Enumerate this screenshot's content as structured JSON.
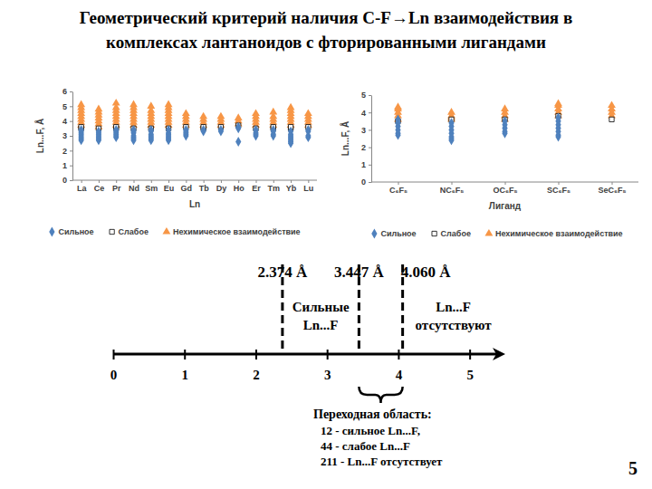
{
  "title": [
    "Геометрический критерий наличия C-F→Ln взаимодействия в",
    "комплексах лантаноидов с фторированными лигандами"
  ],
  "page_number": 5,
  "chart_data": [
    {
      "type": "scatter",
      "categories": [
        "La",
        "Ce",
        "Pr",
        "Nd",
        "Sm",
        "Eu",
        "Gd",
        "Tb",
        "Dy",
        "Ho",
        "Er",
        "Tm",
        "Yb",
        "Lu"
      ],
      "x_label": "Ln",
      "y_label": "Ln...F, Å",
      "ylim": [
        0,
        6
      ],
      "yticks": [
        0,
        1,
        2,
        3,
        4,
        5,
        6
      ],
      "grid": false,
      "legend": "bottom",
      "series": [
        {
          "name": "Сильное",
          "color": "#4f81bd",
          "marker": "diamond",
          "values": [
            [
              2.7,
              2.8,
              2.9,
              3.0,
              3.1,
              3.2,
              3.3,
              3.4
            ],
            [
              2.7,
              2.8,
              2.9,
              3.0,
              3.1,
              3.2,
              3.3
            ],
            [
              2.9,
              3.0,
              3.1,
              3.2,
              3.3,
              3.4
            ],
            [
              2.7,
              2.8,
              2.9,
              3.0,
              3.2,
              3.3,
              3.4
            ],
            [
              2.7,
              2.8,
              2.9,
              3.0,
              3.1,
              3.3,
              3.4
            ],
            [
              2.7,
              2.8,
              2.9,
              3.0,
              3.1,
              3.2,
              3.4
            ],
            [
              3.0,
              3.1,
              3.2,
              3.3,
              3.4
            ],
            [
              3.3,
              3.4
            ],
            [
              3.3,
              3.4
            ],
            [
              2.6,
              3.5,
              3.6
            ],
            [
              3.0,
              3.1,
              3.2,
              3.4
            ],
            [
              3.0,
              3.1,
              3.3,
              3.4
            ],
            [
              2.5,
              2.6,
              2.7,
              2.8,
              2.9,
              3.0,
              3.1,
              3.3
            ],
            [
              2.9,
              3.0,
              3.3,
              3.4
            ]
          ]
        },
        {
          "name": "Слабое",
          "color": "#ffffff",
          "marker": "square",
          "values": [
            [
              3.5,
              3.6
            ],
            [
              3.5
            ],
            [
              3.5,
              3.6
            ],
            [
              3.5
            ],
            [
              3.5
            ],
            [
              3.5
            ],
            [
              3.6
            ],
            [
              3.5,
              3.6
            ],
            [
              3.6
            ],
            [
              3.7
            ],
            [
              3.5
            ],
            [
              3.5,
              3.6
            ],
            [
              3.5,
              3.6
            ],
            [
              3.6
            ]
          ]
        },
        {
          "name": "Нехимическое взаимодействие",
          "color": "#f79646",
          "marker": "triangle",
          "values": [
            [
              3.7,
              3.9,
              4.1,
              4.3,
              4.5,
              4.7,
              4.9,
              5.1
            ],
            [
              3.6,
              3.8,
              4.0,
              4.2,
              4.4,
              4.6,
              4.8
            ],
            [
              3.7,
              3.9,
              4.1,
              4.3,
              4.5,
              4.7,
              4.9,
              5.2
            ],
            [
              3.7,
              3.9,
              4.1,
              4.3,
              4.5,
              4.7,
              4.9,
              5.1
            ],
            [
              3.7,
              3.9,
              4.1,
              4.3,
              4.5,
              4.7,
              5.0
            ],
            [
              3.7,
              3.9,
              4.1,
              4.3,
              4.5,
              4.7,
              4.9,
              5.1
            ],
            [
              3.7,
              3.9,
              4.1,
              4.3,
              4.5
            ],
            [
              3.7,
              3.9,
              4.1,
              4.3
            ],
            [
              3.7,
              3.9,
              4.1,
              4.3
            ],
            [
              3.8,
              4.0,
              4.2
            ],
            [
              3.7,
              3.9,
              4.1,
              4.3,
              4.5
            ],
            [
              3.7,
              3.9,
              4.1,
              4.3,
              4.6
            ],
            [
              3.7,
              3.9,
              4.1,
              4.3,
              4.5,
              4.7,
              4.9
            ],
            [
              3.7,
              3.9,
              4.1,
              4.3,
              4.5
            ]
          ]
        }
      ]
    },
    {
      "type": "scatter",
      "categories": [
        "C₆F₅",
        "NC₆F₅",
        "OC₆F₅",
        "SC₆F₅",
        "SeC₆F₅"
      ],
      "x_label": "Лиганд",
      "y_label": "Ln...F, Å",
      "ylim": [
        0,
        5
      ],
      "yticks": [
        0,
        1,
        2,
        3,
        4,
        5
      ],
      "grid": false,
      "legend": "bottom",
      "series": [
        {
          "name": "Сильное",
          "color": "#4f81bd",
          "marker": "diamond",
          "values": [
            [
              2.7,
              2.8,
              3.0,
              3.2,
              3.4,
              3.6
            ],
            [
              2.4,
              2.5,
              2.6,
              2.8,
              3.0,
              3.2,
              3.4
            ],
            [
              2.8,
              2.9,
              3.1,
              3.3,
              3.5
            ],
            [
              2.6,
              2.7,
              2.9,
              3.1,
              3.3,
              3.5,
              3.7
            ],
            []
          ]
        },
        {
          "name": "Слабое",
          "color": "#ffffff",
          "marker": "square",
          "values": [
            [
              3.5
            ],
            [
              3.6
            ],
            [
              3.6
            ],
            [
              3.8
            ],
            [
              3.6
            ]
          ]
        },
        {
          "name": "Нехимическое взаимодействие",
          "color": "#f79646",
          "marker": "triangle",
          "values": [
            [
              3.6,
              3.8,
              4.0,
              4.2,
              4.3
            ],
            [
              3.6,
              3.7,
              3.8,
              4.0
            ],
            [
              3.6,
              3.8,
              4.0,
              4.2
            ],
            [
              3.8,
              4.0,
              4.2,
              4.4,
              4.5
            ],
            [
              3.8,
              4.0,
              4.2,
              4.4
            ]
          ]
        }
      ]
    },
    {
      "type": "number_line",
      "xlim": [
        0,
        5.5
      ],
      "xticks": [
        0,
        1,
        2,
        3,
        4,
        5
      ],
      "thresholds": [
        {
          "value": 2.374,
          "label": "2.374 Å"
        },
        {
          "value": 3.447,
          "label": "3.447 Å"
        },
        {
          "value": 4.06,
          "label": "4.060 Å"
        }
      ],
      "strong_label": [
        "Сильные",
        "Ln...F"
      ],
      "absent_label": [
        "Ln...F",
        "отсутствуют"
      ],
      "transition": {
        "title": "Переходная область:",
        "lines": [
          "12 - сильное Ln...F,",
          "44 - слабое Ln...F",
          "211 - Ln...F отсутствует"
        ]
      }
    }
  ]
}
